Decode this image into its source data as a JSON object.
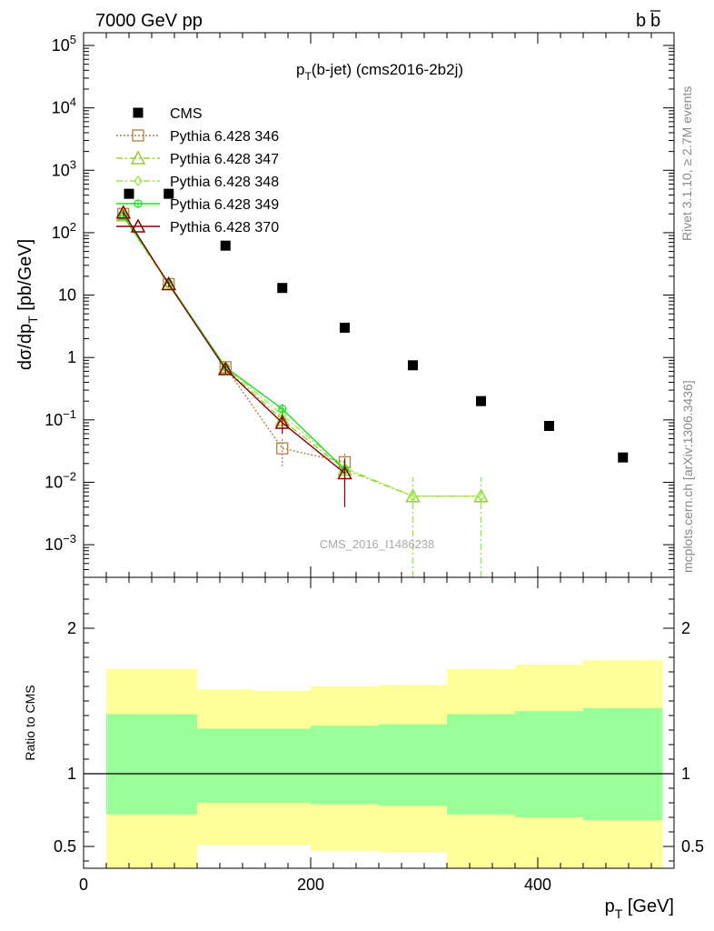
{
  "header": {
    "left": "7000 GeV pp",
    "right": "b",
    "right_bar": "b"
  },
  "side_text": {
    "rivet": "Rivet 3.1.10, ≥ 2.7M events",
    "mcplots": "mcplots.cern.ch [arXiv:1306.3436]"
  },
  "watermark": "CMS_2016_I1486238",
  "chart_data": [
    {
      "type": "scatter",
      "title_main": "p",
      "title_sub": "T",
      "title_rest": "(b-jet) (cms2016-2b2j)",
      "ylabel_parts": [
        "dσ/dp",
        "T",
        " [pb/GeV]"
      ],
      "yscale": "log",
      "ylim": [
        0.0003,
        160000
      ],
      "xlim": [
        0,
        520
      ],
      "yticks_major": [
        {
          "v": 0.001,
          "base": "10",
          "exp": "−3"
        },
        {
          "v": 0.01,
          "base": "10",
          "exp": "−2"
        },
        {
          "v": 0.1,
          "base": "10",
          "exp": "−1"
        },
        {
          "v": 1,
          "label": "1"
        },
        {
          "v": 10,
          "label": "10"
        },
        {
          "v": 100,
          "base": "10",
          "exp": "2"
        },
        {
          "v": 1000,
          "base": "10",
          "exp": "3"
        },
        {
          "v": 10000,
          "base": "10",
          "exp": "4"
        },
        {
          "v": 100000,
          "base": "10",
          "exp": "5"
        }
      ],
      "legend_position": "top-left",
      "series": [
        {
          "name": "CMS",
          "marker": "square-filled",
          "color": "#000000",
          "line": "none",
          "x": [
            40,
            75,
            125,
            175,
            230,
            290,
            350,
            410,
            475
          ],
          "y": [
            420,
            420,
            62,
            13,
            3.0,
            0.75,
            0.2,
            0.08,
            0.025
          ]
        },
        {
          "name": "Pythia 6.428 346",
          "marker": "square-open",
          "color": "#b07f45",
          "line": "dotted",
          "x": [
            35,
            75,
            125,
            175,
            230
          ],
          "y": [
            200,
            15,
            0.7,
            0.035,
            0.021
          ],
          "err_lo": [
            180,
            13.5,
            0.6,
            0.018,
            0.012
          ],
          "err_hi": [
            225,
            16.5,
            0.8,
            0.05,
            0.03
          ]
        },
        {
          "name": "Pythia 6.428 347",
          "marker": "triangle-open",
          "color": "#9acd32",
          "line": "dashdot",
          "x": [
            35,
            75,
            125,
            175,
            230,
            290,
            350
          ],
          "y": [
            190,
            15,
            0.68,
            0.1,
            0.016,
            0.006,
            0.006
          ],
          "err_lo": [
            170,
            13.5,
            0.58,
            0.06,
            0.008,
            0.0003,
            0.0003
          ],
          "err_hi": [
            210,
            16.5,
            0.78,
            0.14,
            0.024,
            0.012,
            0.012
          ]
        },
        {
          "name": "Pythia 6.428 348",
          "marker": "diamond-open",
          "color": "#99e64d",
          "line": "dashdot",
          "x": [
            35,
            75,
            125,
            175,
            230,
            290,
            350
          ],
          "y": [
            180,
            14.5,
            0.72,
            0.12,
            0.017,
            0.006,
            0.006
          ],
          "err_lo": [
            160,
            13,
            0.62,
            0.08,
            0.01,
            0.0003,
            0.0003
          ],
          "err_hi": [
            200,
            16,
            0.82,
            0.16,
            0.025,
            0.012,
            0.012
          ]
        },
        {
          "name": "Pythia 6.428 349",
          "marker": "circle-open-cross",
          "color": "#22dd22",
          "line": "solid",
          "x": [
            35,
            75,
            125,
            175,
            230
          ],
          "y": [
            185,
            15.5,
            0.7,
            0.15,
            0.016
          ],
          "err_lo": [
            165,
            14,
            0.6,
            0.12,
            0.01
          ],
          "err_hi": [
            205,
            17,
            0.8,
            0.18,
            0.022
          ]
        },
        {
          "name": "Pythia 6.428 370",
          "marker": "triangle-open",
          "color": "#8b0000",
          "line": "solid",
          "x": [
            35,
            75,
            125,
            175,
            230
          ],
          "y": [
            210,
            15,
            0.65,
            0.09,
            0.014
          ],
          "err_lo": [
            190,
            13.5,
            0.55,
            0.06,
            0.004
          ],
          "err_hi": [
            230,
            16.5,
            0.75,
            0.12,
            0.024
          ]
        }
      ]
    },
    {
      "type": "area",
      "ylabel": "Ratio to CMS",
      "xlabel_main": "p",
      "xlabel_sub": "T",
      "xlabel_rest": " [GeV]",
      "ylim": [
        0.35,
        2.35
      ],
      "xlim": [
        0,
        520
      ],
      "yticks": [
        {
          "v": 0.5,
          "label": "0.5"
        },
        {
          "v": 1,
          "label": "1"
        },
        {
          "v": 2,
          "label": "2"
        }
      ],
      "xticks": [
        {
          "v": 0,
          "label": "0"
        },
        {
          "v": 200,
          "label": "200"
        },
        {
          "v": 400,
          "label": "400"
        }
      ],
      "reference_line": 1,
      "bins": [
        {
          "lo": 20,
          "hi": 100,
          "y_lo": 0.3,
          "y_hi": 1.72,
          "g_lo": 0.72,
          "g_hi": 1.41
        },
        {
          "lo": 100,
          "hi": 150,
          "y_lo": 0.51,
          "y_hi": 1.58,
          "g_lo": 0.8,
          "g_hi": 1.31
        },
        {
          "lo": 150,
          "hi": 200,
          "y_lo": 0.51,
          "y_hi": 1.57,
          "g_lo": 0.8,
          "g_hi": 1.31
        },
        {
          "lo": 200,
          "hi": 260,
          "y_lo": 0.47,
          "y_hi": 1.6,
          "g_lo": 0.79,
          "g_hi": 1.33
        },
        {
          "lo": 260,
          "hi": 320,
          "y_lo": 0.46,
          "y_hi": 1.61,
          "g_lo": 0.78,
          "g_hi": 1.34
        },
        {
          "lo": 320,
          "hi": 380,
          "y_lo": 0.3,
          "y_hi": 1.72,
          "g_lo": 0.72,
          "g_hi": 1.41
        },
        {
          "lo": 380,
          "hi": 440,
          "y_lo": 0.3,
          "y_hi": 1.75,
          "g_lo": 0.7,
          "g_hi": 1.43
        },
        {
          "lo": 440,
          "hi": 510,
          "y_lo": 0.3,
          "y_hi": 1.78,
          "g_lo": 0.68,
          "g_hi": 1.45
        }
      ],
      "colors": {
        "yellow": "#ffff99",
        "green": "#99ff99"
      }
    }
  ]
}
